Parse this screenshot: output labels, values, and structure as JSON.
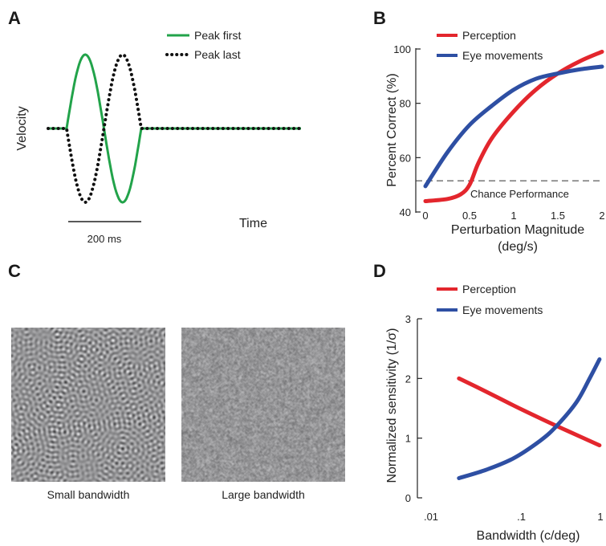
{
  "panels": {
    "a": {
      "letter": "A",
      "ylabel": "Velocity",
      "xlabel": "Time",
      "scalebar_label": "200 ms",
      "legend": [
        {
          "name": "Peak first",
          "style": "solid",
          "color": "#22a34a"
        },
        {
          "name": "Peak last",
          "style": "dotted",
          "color": "#111111"
        }
      ]
    },
    "b": {
      "letter": "B"
    },
    "c": {
      "letter": "C",
      "captions": [
        "Small bandwidth",
        "Large bandwidth"
      ]
    },
    "d": {
      "letter": "D"
    }
  },
  "chart_data": [
    {
      "panel": "A",
      "type": "line",
      "title": "",
      "xlabel": "Time",
      "ylabel": "Velocity",
      "series": [
        {
          "name": "Peak first",
          "color": "#22a34a",
          "style": "solid"
        },
        {
          "name": "Peak last",
          "color": "#111111",
          "style": "dotted"
        }
      ]
    },
    {
      "panel": "B",
      "type": "line",
      "title": "",
      "xlabel": "Perturbation Magnitude",
      "xlabel2": "(deg/s)",
      "ylabel": "Percent Correct (%)",
      "xlim": [
        0,
        2
      ],
      "ylim": [
        40,
        100
      ],
      "xticks": [
        "0",
        "0.5",
        "1",
        "1.5",
        "2"
      ],
      "yticks": [
        "40",
        "60",
        "80",
        "100"
      ],
      "annotation": "Chance Performance",
      "chance_level": 51.5,
      "series": [
        {
          "name": "Perception",
          "color": "#e3262d",
          "x": [
            0,
            0.25,
            0.4,
            0.5,
            0.6,
            0.75,
            1.0,
            1.25,
            1.5,
            1.75,
            2.0
          ],
          "y": [
            44,
            44.8,
            46.5,
            50,
            58,
            67,
            77,
            85,
            91,
            95.5,
            99
          ]
        },
        {
          "name": "Eye movements",
          "color": "#2e4fa3",
          "x": [
            0,
            0.25,
            0.5,
            0.75,
            1.0,
            1.25,
            1.5,
            1.75,
            2.0
          ],
          "y": [
            49.5,
            62,
            72,
            79,
            85,
            89,
            91,
            92.5,
            93.5
          ]
        }
      ]
    },
    {
      "panel": "D",
      "type": "line",
      "title": "",
      "xlabel": "Bandwidth (c/deg)",
      "ylabel": "Normalized sensitivity (1/σ)",
      "xscale": "log",
      "xlim": [
        0.01,
        1
      ],
      "ylim": [
        0,
        3
      ],
      "xticks": [
        ".01",
        ".1",
        "1"
      ],
      "yticks": [
        "0",
        "1",
        "2",
        "3"
      ],
      "series": [
        {
          "name": "Perception",
          "color": "#e3262d",
          "x": [
            0.025,
            0.05,
            0.1,
            0.2,
            0.4,
            0.9
          ],
          "y": [
            2.0,
            1.78,
            1.55,
            1.33,
            1.12,
            0.88
          ]
        },
        {
          "name": "Eye movements",
          "color": "#2e4fa3",
          "x": [
            0.025,
            0.05,
            0.1,
            0.2,
            0.3,
            0.5,
            0.7,
            0.9
          ],
          "y": [
            0.33,
            0.47,
            0.66,
            0.96,
            1.2,
            1.6,
            2.0,
            2.32
          ]
        }
      ]
    }
  ]
}
